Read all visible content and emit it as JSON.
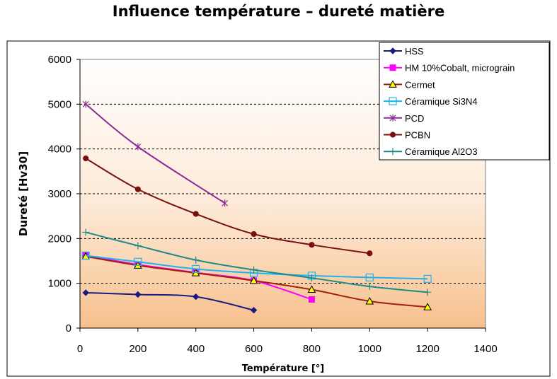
{
  "chart_data": {
    "type": "line",
    "title": "Influence température – dureté matière",
    "xlabel": "Température  [°]",
    "ylabel": "Dureté [Hv30]",
    "xlim": [
      0,
      1400
    ],
    "ylim": [
      0,
      6000
    ],
    "xticks": [
      0,
      200,
      400,
      600,
      800,
      1000,
      1200,
      1400
    ],
    "yticks": [
      0,
      1000,
      2000,
      3000,
      4000,
      5000,
      6000
    ],
    "grid": "horizontal-dashed",
    "legend_position": "top-right",
    "series": [
      {
        "name": "HSS",
        "color": "#1a1a80",
        "marker": "diamond",
        "points": [
          [
            20,
            790
          ],
          [
            200,
            750
          ],
          [
            400,
            700
          ],
          [
            600,
            400
          ]
        ]
      },
      {
        "name": "HM 10%Cobalt, micrograin",
        "color": "#ff00ff",
        "marker": "square",
        "points": [
          [
            20,
            1620
          ],
          [
            200,
            1420
          ],
          [
            400,
            1240
          ],
          [
            600,
            1060
          ],
          [
            800,
            640
          ]
        ]
      },
      {
        "name": "Cermet",
        "color": "#a0200a",
        "marker": "triangle",
        "points": [
          [
            20,
            1600
          ],
          [
            200,
            1400
          ],
          [
            400,
            1230
          ],
          [
            600,
            1060
          ],
          [
            800,
            860
          ],
          [
            1000,
            600
          ],
          [
            1200,
            470
          ]
        ]
      },
      {
        "name": "Céramique Si3N4",
        "color": "#1eb4f0",
        "marker": "square-open",
        "points": [
          [
            20,
            1620
          ],
          [
            200,
            1480
          ],
          [
            400,
            1320
          ],
          [
            600,
            1230
          ],
          [
            800,
            1170
          ],
          [
            1000,
            1130
          ],
          [
            1200,
            1100
          ]
        ]
      },
      {
        "name": "PCD",
        "color": "#8a2c9a",
        "marker": "star",
        "points": [
          [
            20,
            5000
          ],
          [
            200,
            4050
          ],
          [
            500,
            2790
          ]
        ]
      },
      {
        "name": "PCBN",
        "color": "#7a1010",
        "marker": "circle",
        "points": [
          [
            20,
            3790
          ],
          [
            200,
            3100
          ],
          [
            400,
            2550
          ],
          [
            600,
            2100
          ],
          [
            800,
            1860
          ],
          [
            1000,
            1670
          ]
        ]
      },
      {
        "name": "Céramique Al2O3",
        "color": "#1e8a8a",
        "marker": "plus",
        "points": [
          [
            20,
            2140
          ],
          [
            200,
            1840
          ],
          [
            400,
            1520
          ],
          [
            600,
            1300
          ],
          [
            800,
            1120
          ],
          [
            1000,
            930
          ],
          [
            1200,
            800
          ]
        ]
      }
    ]
  }
}
